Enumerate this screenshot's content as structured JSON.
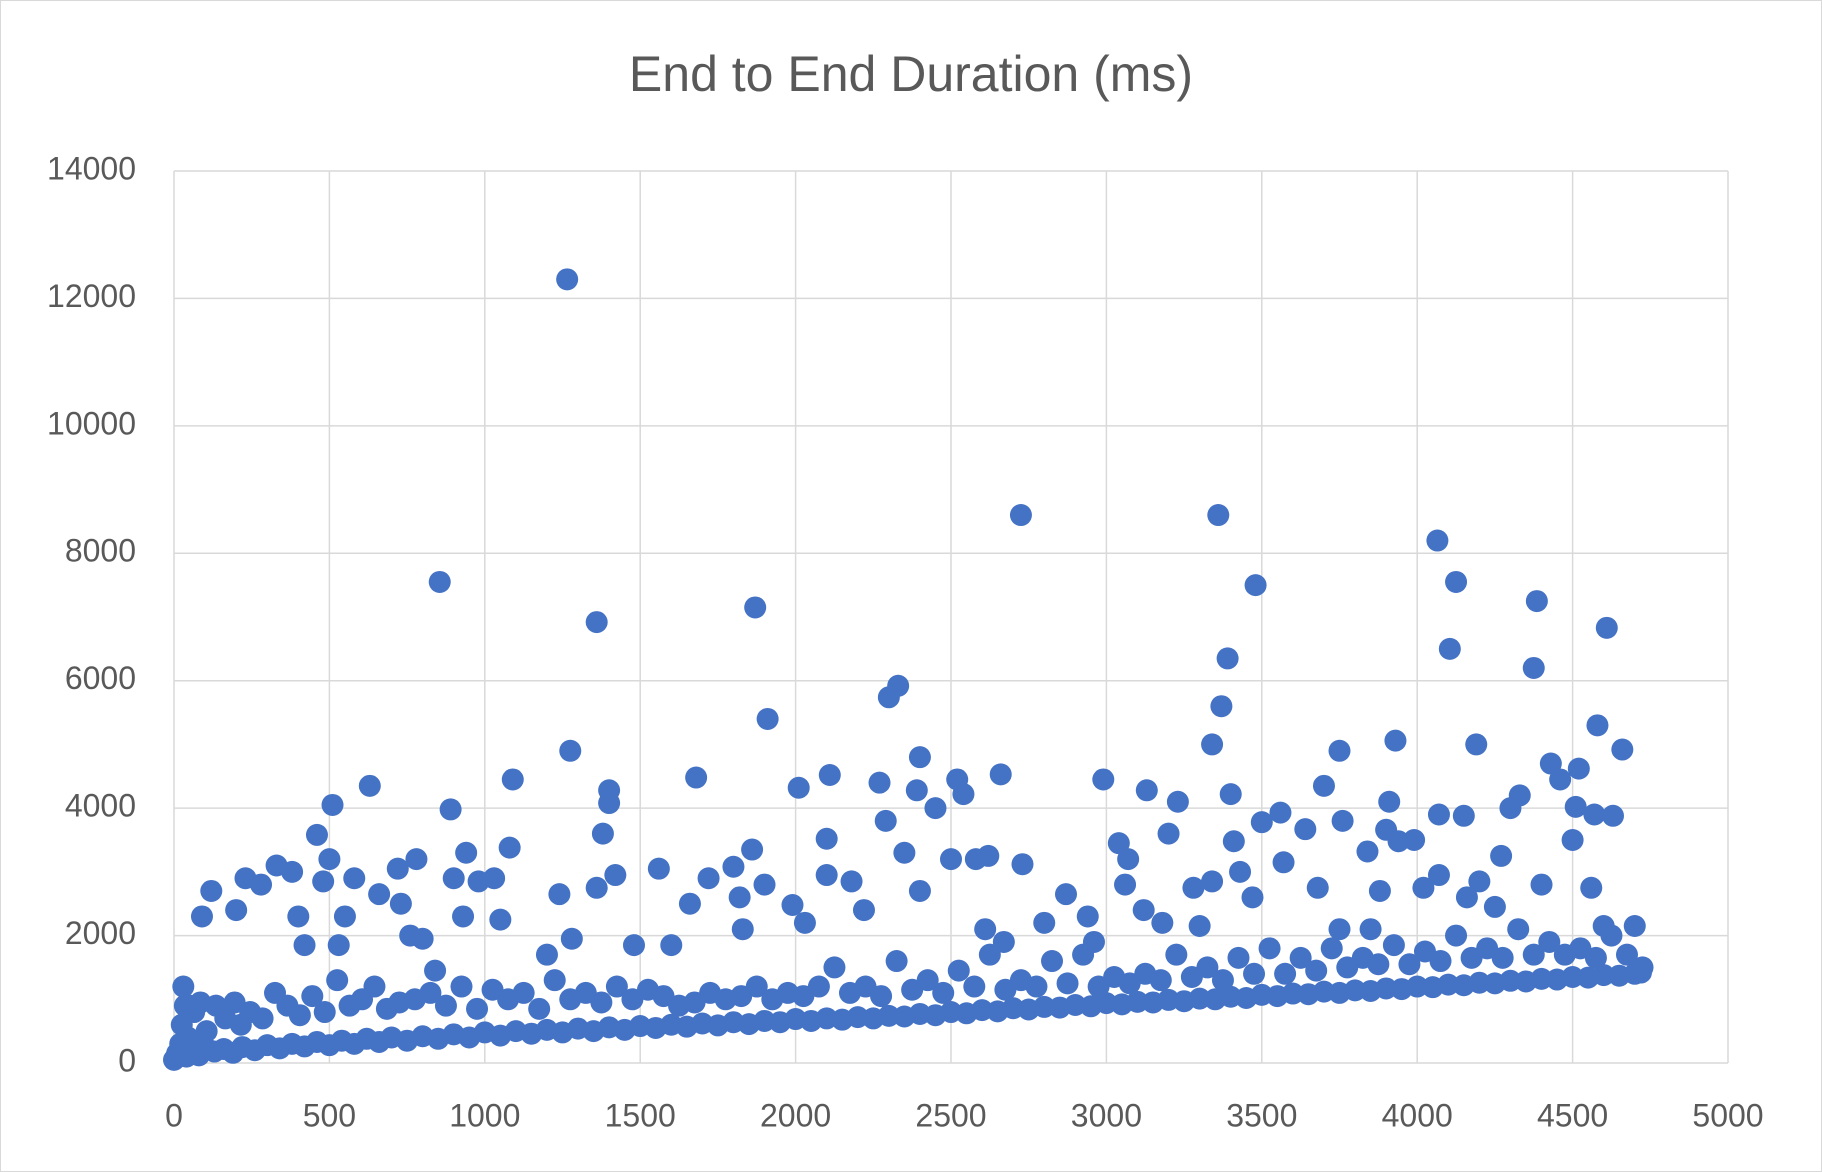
{
  "chart_data": {
    "type": "scatter",
    "title": "End to End Duration (ms)",
    "color": "#4472c4",
    "grid": true,
    "xlim": [
      0,
      5000
    ],
    "xticks": [
      0,
      500,
      1000,
      1500,
      2000,
      2500,
      3000,
      3500,
      4000,
      4500,
      5000
    ],
    "ylim": [
      0,
      14000
    ],
    "yticks": [
      0,
      2000,
      4000,
      6000,
      8000,
      10000,
      12000,
      14000
    ],
    "x": [
      1265,
      855,
      1360,
      1870,
      1910,
      2725,
      3360,
      3480,
      3390,
      3370,
      3340,
      4065,
      4125,
      4105,
      4385,
      4375,
      4610,
      4580,
      4660,
      2330,
      2300,
      1275,
      1090,
      630,
      510,
      890,
      1680,
      2010,
      2110,
      2270,
      2400,
      2520,
      2660,
      2990,
      3130,
      3700,
      3750,
      3930,
      4190,
      4430,
      4520,
      3910,
      3230,
      120,
      200,
      230,
      280,
      330,
      380,
      400,
      420,
      460,
      480,
      500,
      530,
      550,
      580,
      660,
      720,
      730,
      760,
      800,
      780,
      840,
      900,
      940,
      930,
      980,
      1030,
      1050,
      1080,
      1200,
      1240,
      1280,
      1360,
      1400,
      1400,
      1380,
      1420,
      1480,
      1560,
      1600,
      1660,
      1720,
      1800,
      1820,
      1860,
      1830,
      1900,
      1990,
      2030,
      2100,
      2100,
      2180,
      2220,
      2290,
      2350,
      2390,
      2400,
      2450,
      2500,
      2540,
      2580,
      2620,
      2730,
      2800,
      2870,
      2940,
      3040,
      3070,
      3060,
      3120,
      3180,
      3200,
      3280,
      3340,
      3400,
      3410,
      3430,
      3470,
      3500,
      3560,
      3570,
      3640,
      3680,
      3760,
      3840,
      3880,
      3900,
      3940,
      3990,
      4020,
      4070,
      4070,
      4150,
      4160,
      4200,
      4250,
      4270,
      4300,
      4330,
      4400,
      4460,
      4500,
      4510,
      4570,
      4600,
      4560,
      4630,
      4700,
      3850,
      3750,
      3300,
      2960,
      2670,
      2610,
      30,
      90,
      50,
      0,
      10,
      20,
      40,
      60,
      80,
      100,
      130,
      160,
      190,
      220,
      260,
      300,
      340,
      380,
      420,
      460,
      500,
      540,
      580,
      620,
      660,
      700,
      750,
      800,
      850,
      900,
      950,
      1000,
      1050,
      1100,
      1150,
      1200,
      1250,
      1300,
      1350,
      1400,
      1450,
      1500,
      1550,
      1600,
      1650,
      1700,
      1750,
      1800,
      1850,
      1900,
      1950,
      2000,
      2050,
      2100,
      2150,
      2200,
      2250,
      2300,
      2350,
      2400,
      2450,
      2500,
      2550,
      2600,
      2650,
      2700,
      2750,
      2800,
      2850,
      2900,
      2950,
      3000,
      3050,
      3100,
      3150,
      3200,
      3250,
      3300,
      3350,
      3400,
      3450,
      3500,
      3550,
      3600,
      3650,
      3700,
      3750,
      3800,
      3850,
      3900,
      3950,
      4000,
      4050,
      4100,
      4150,
      4200,
      4250,
      4300,
      4350,
      4400,
      4450,
      4500,
      4550,
      4600,
      4650,
      4700,
      4720,
      25,
      35,
      45,
      65,
      85,
      105,
      135,
      165,
      195,
      215,
      245,
      285,
      325,
      365,
      405,
      445,
      485,
      525,
      565,
      605,
      645,
      685,
      725,
      775,
      825,
      875,
      925,
      975,
      1025,
      1075,
      1125,
      1175,
      1225,
      1275,
      1325,
      1375,
      1425,
      1475,
      1525,
      1575,
      1625,
      1675,
      1725,
      1775,
      1825,
      1875,
      1925,
      1975,
      2025,
      2075,
      2125,
      2175,
      2225,
      2275,
      2325,
      2375,
      2425,
      2475,
      2525,
      2575,
      2625,
      2675,
      2725,
      2775,
      2825,
      2875,
      2925,
      2975,
      3025,
      3075,
      3125,
      3175,
      3225,
      3275,
      3325,
      3375,
      3425,
      3475,
      3525,
      3575,
      3625,
      3675,
      3725,
      3775,
      3825,
      3875,
      3925,
      3975,
      4025,
      4075,
      4125,
      4175,
      4225,
      4275,
      4325,
      4375,
      4425,
      4475,
      4525,
      4575,
      4625,
      4675,
      4725
    ],
    "values": [
      12300,
      7550,
      6920,
      7150,
      5400,
      8600,
      8600,
      7500,
      6350,
      5600,
      5000,
      8200,
      7550,
      6500,
      7250,
      6200,
      6830,
      5300,
      4920,
      5920,
      5740,
      4900,
      4450,
      4350,
      4050,
      3980,
      4480,
      4320,
      4520,
      4400,
      4800,
      4450,
      4530,
      4450,
      4280,
      4350,
      4900,
      5060,
      5000,
      4700,
      4620,
      4100,
      4100,
      2700,
      2400,
      2900,
      2800,
      3100,
      3000,
      2300,
      1850,
      3580,
      2850,
      3200,
      1850,
      2300,
      2900,
      2650,
      3050,
      2500,
      2000,
      1950,
      3200,
      1450,
      2900,
      3300,
      2300,
      2850,
      2900,
      2250,
      3380,
      1700,
      2650,
      1950,
      2750,
      4280,
      4080,
      3600,
      2950,
      1850,
      3050,
      1850,
      2500,
      2900,
      3080,
      2600,
      3350,
      2100,
      2800,
      2480,
      2200,
      2950,
      3520,
      2850,
      2400,
      3800,
      3300,
      4280,
      2700,
      4000,
      3200,
      4220,
      3200,
      3250,
      3120,
      2200,
      2650,
      2300,
      3450,
      3200,
      2800,
      2400,
      2200,
      3600,
      2750,
      2850,
      4220,
      3480,
      3000,
      2600,
      3780,
      3930,
      3150,
      3670,
      2750,
      3800,
      3320,
      2700,
      3660,
      3480,
      3500,
      2750,
      3900,
      2950,
      3880,
      2600,
      2850,
      2450,
      3250,
      4000,
      4200,
      2800,
      4450,
      3500,
      4020,
      3900,
      2150,
      2750,
      3880,
      2150,
      2100,
      2100,
      2150,
      1900,
      1900,
      2100,
      1200,
      2300,
      900,
      50,
      150,
      300,
      100,
      200,
      120,
      250,
      180,
      220,
      160,
      250,
      200,
      280,
      230,
      300,
      260,
      330,
      280,
      350,
      300,
      380,
      330,
      400,
      350,
      420,
      380,
      450,
      400,
      480,
      430,
      500,
      460,
      520,
      480,
      540,
      500,
      560,
      520,
      580,
      550,
      600,
      570,
      620,
      590,
      640,
      610,
      660,
      640,
      690,
      660,
      700,
      680,
      720,
      700,
      740,
      730,
      770,
      750,
      800,
      780,
      830,
      810,
      860,
      840,
      880,
      870,
      910,
      890,
      940,
      920,
      960,
      950,
      990,
      970,
      1010,
      1000,
      1040,
      1020,
      1070,
      1050,
      1090,
      1080,
      1120,
      1100,
      1140,
      1130,
      1170,
      1160,
      1200,
      1190,
      1230,
      1220,
      1260,
      1250,
      1290,
      1280,
      1320,
      1310,
      1350,
      1340,
      1380,
      1370,
      1400,
      1420,
      600,
      900,
      400,
      800,
      950,
      500,
      900,
      700,
      950,
      600,
      800,
      700,
      1100,
      900,
      750,
      1050,
      800,
      1300,
      900,
      1000,
      1200,
      850,
      950,
      1000,
      1100,
      900,
      1200,
      850,
      1150,
      1000,
      1100,
      850,
      1300,
      1000,
      1100,
      950,
      1200,
      1000,
      1150,
      1050,
      900,
      950,
      1100,
      1000,
      1050,
      1200,
      1000,
      1100,
      1050,
      1200,
      1500,
      1100,
      1200,
      1050,
      1600,
      1150,
      1300,
      1100,
      1450,
      1200,
      1700,
      1150,
      1300,
      1200,
      1600,
      1250,
      1700,
      1200,
      1350,
      1250,
      1400,
      1300,
      1700,
      1350,
      1500,
      1300,
      1650,
      1400,
      1800,
      1400,
      1650,
      1450,
      1800,
      1500,
      1650,
      1550,
      1850,
      1550,
      1750,
      1600,
      2000,
      1650,
      1800,
      1650,
      2100,
      1700,
      1900,
      1700,
      1800,
      1650,
      2000,
      1700,
      1500
    ]
  }
}
